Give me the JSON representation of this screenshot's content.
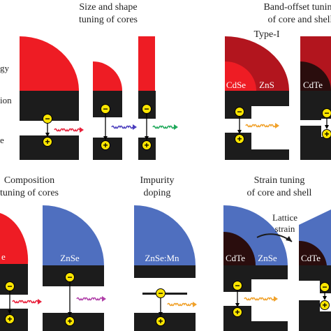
{
  "panels": {
    "size_shape": {
      "title_line1": "Size and shape",
      "title_line2": "tuning of cores"
    },
    "band_offset": {
      "title_line1": "Band-offset tuning",
      "title_line2": "of core and shell",
      "type_label": "Type-I"
    },
    "composition": {
      "title_line1": "Composition",
      "title_line2": "tuning of cores"
    },
    "impurity": {
      "title_line1": "Impurity",
      "title_line2": "doping"
    },
    "strain": {
      "title_line1": "Strain tuning",
      "title_line2": "of core and shell",
      "lattice_line1": "Lattice",
      "lattice_line2": "strain"
    }
  },
  "left_axis_fragments": {
    "energy": "gy",
    "conduction": "ion",
    "valence": "e"
  },
  "materials": {
    "cdse": "CdSe",
    "zns": "ZnS",
    "cdte": "CdTe",
    "znse": "ZnSe",
    "znse_mn": "ZnSe:Mn",
    "cdte_strain": "CdTe",
    "znse_strain": "ZnSe",
    "cdte_strain_right": "CdTe",
    "partial_comp": "e"
  },
  "carrier_signs": {
    "electron": "−",
    "hole": "+"
  },
  "colors": {
    "red": "#ee1c24",
    "dark_red": "#b2151e",
    "blue": "#4f6fbf",
    "black": "#1c1c1c",
    "dark_core": "#2a0d0d",
    "carrier": "#ffe600",
    "wave_red": "#e8203a",
    "wave_blue": "#4a3dbd",
    "wave_green": "#1fa85a",
    "wave_orange": "#f0a12a",
    "wave_magenta": "#b03fa8"
  }
}
